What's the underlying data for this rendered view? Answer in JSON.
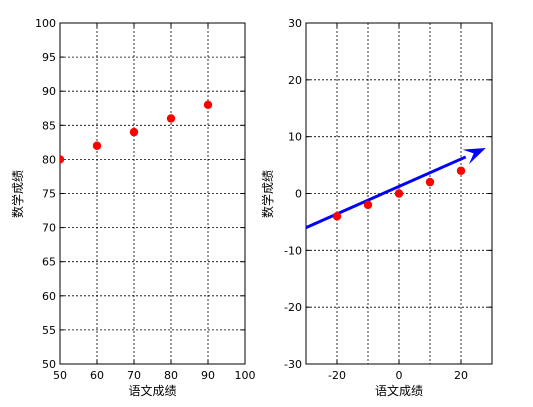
{
  "chart_data": [
    {
      "type": "scatter",
      "title": "",
      "xlabel": "语文成绩",
      "ylabel": "数学成绩",
      "xlim": [
        50,
        100
      ],
      "ylim": [
        50,
        100
      ],
      "xticks": [
        50,
        60,
        70,
        80,
        90,
        100
      ],
      "yticks": [
        50,
        55,
        60,
        65,
        70,
        75,
        80,
        85,
        90,
        95,
        100
      ],
      "grid": true,
      "marker_color": "#ff0000",
      "series": [
        {
          "x": [
            50,
            60,
            70,
            80,
            90
          ],
          "y": [
            80,
            82,
            84,
            86,
            88
          ]
        }
      ]
    },
    {
      "type": "scatter",
      "title": "",
      "xlabel": "语文成绩",
      "ylabel": "数学成绩",
      "xlim": [
        -30,
        30
      ],
      "ylim": [
        -30,
        30
      ],
      "xticks": [
        -20,
        0,
        20
      ],
      "yticks": [
        -30,
        -20,
        -10,
        0,
        10,
        20,
        30
      ],
      "xgrid": [
        -20,
        -10,
        0,
        10,
        20
      ],
      "grid": true,
      "marker_color": "#ff0000",
      "series": [
        {
          "x": [
            -20,
            -10,
            0,
            10,
            20
          ],
          "y": [
            -4,
            -2,
            0,
            2,
            4
          ]
        }
      ],
      "arrow": {
        "from": [
          -30,
          -6
        ],
        "to": [
          28,
          8
        ],
        "color": "#0000ff"
      }
    }
  ]
}
